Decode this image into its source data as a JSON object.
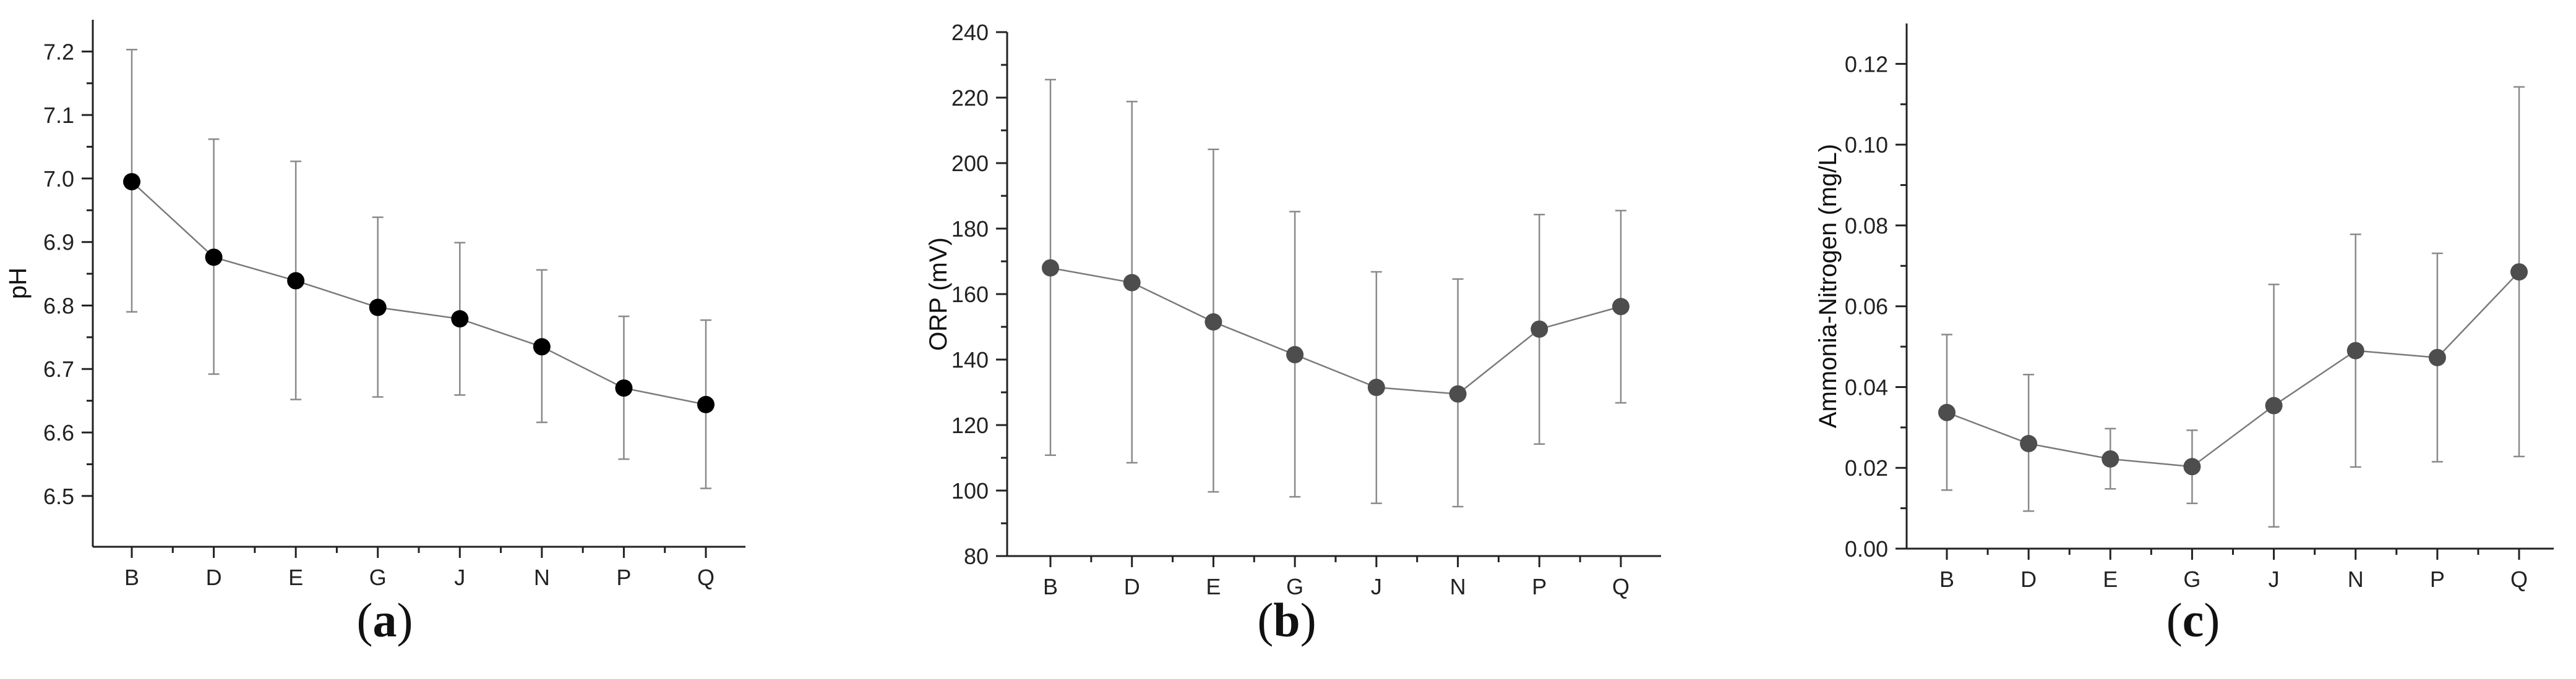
{
  "chart_data": [
    {
      "type": "line",
      "panel_label": "(a)",
      "panel_letter": "a",
      "ylabel": "pH",
      "categories": [
        "B",
        "D",
        "E",
        "G",
        "J",
        "N",
        "P",
        "Q"
      ],
      "values": [
        6.995,
        6.876,
        6.839,
        6.797,
        6.779,
        6.735,
        6.67,
        6.644
      ],
      "err_upper": [
        7.203,
        7.062,
        7.027,
        6.939,
        6.899,
        6.856,
        6.783,
        6.777
      ],
      "err_lower": [
        6.79,
        6.692,
        6.652,
        6.656,
        6.659,
        6.616,
        6.558,
        6.512
      ],
      "ylim": [
        6.42,
        7.25
      ],
      "yticks": [
        "6.5",
        "6.6",
        "6.7",
        "6.8",
        "6.9",
        "7.0",
        "7.1",
        "7.2"
      ],
      "marker_color": "#000000"
    },
    {
      "type": "line",
      "panel_label": "(b)",
      "panel_letter": "b",
      "ylabel": "ORP (mV)",
      "categories": [
        "B",
        "D",
        "E",
        "G",
        "J",
        "N",
        "P",
        "Q"
      ],
      "values": [
        168,
        163.5,
        151.5,
        141.5,
        131.5,
        129.5,
        149.3,
        156.2
      ],
      "err_upper": [
        225.5,
        218.8,
        204.2,
        185.2,
        166.8,
        164.6,
        184.3,
        185.5
      ],
      "err_lower": [
        110.8,
        108.5,
        99.6,
        98.1,
        96.1,
        95.1,
        114.2,
        126.8
      ],
      "ylim": [
        80,
        240
      ],
      "yticks": [
        "80",
        "100",
        "120",
        "140",
        "160",
        "180",
        "200",
        "220",
        "240"
      ],
      "marker_color": "#4d4d4d"
    },
    {
      "type": "line",
      "panel_label": "(c)",
      "panel_letter": "c",
      "ylabel": "Ammonia-Nitrogen (mg/L)",
      "categories": [
        "B",
        "D",
        "E",
        "G",
        "J",
        "N",
        "P",
        "Q"
      ],
      "values": [
        0.0337,
        0.026,
        0.0222,
        0.0203,
        0.0354,
        0.049,
        0.0473,
        0.0685
      ],
      "err_upper": [
        0.053,
        0.0431,
        0.0297,
        0.0293,
        0.0654,
        0.0778,
        0.0731,
        0.1143
      ],
      "err_lower": [
        0.0145,
        0.0093,
        0.0148,
        0.0112,
        0.0054,
        0.0202,
        0.0215,
        0.0228
      ],
      "ylim": [
        0.0,
        0.13
      ],
      "yticks": [
        "0.00",
        "0.02",
        "0.04",
        "0.06",
        "0.08",
        "0.10",
        "0.12"
      ],
      "marker_color": "#4d4d4d"
    }
  ]
}
